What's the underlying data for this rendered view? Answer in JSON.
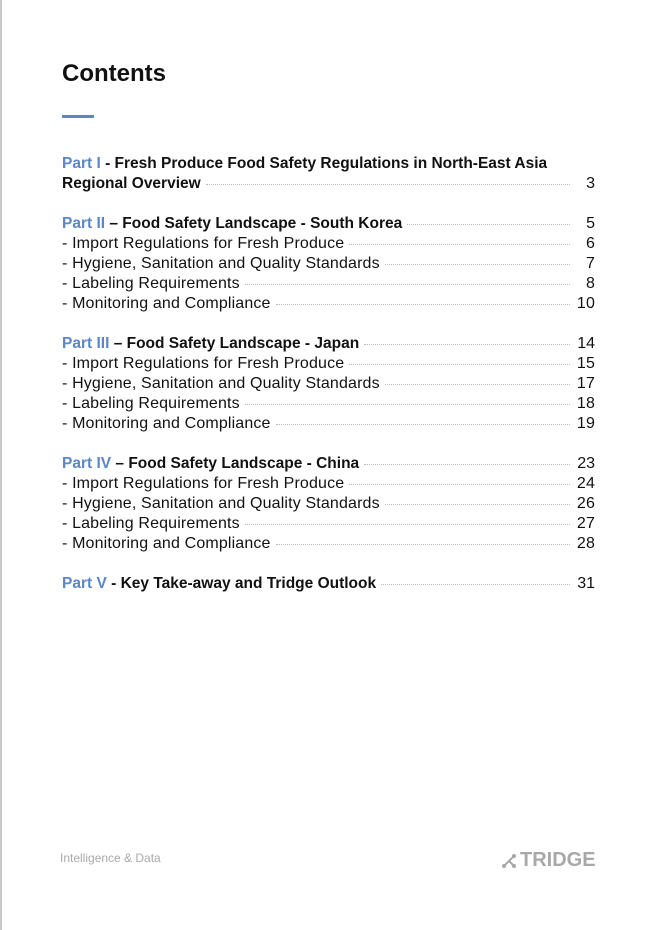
{
  "title": "Contents",
  "colors": {
    "accent": "#5b86c8",
    "text": "#111111",
    "footer": "#aaaaaa"
  },
  "toc": [
    {
      "rows": [
        {
          "part": "Part I",
          "title": " - Fresh Produce Food Safety Regulations in North-East Asia",
          "page": ""
        },
        {
          "part": "",
          "title": "Regional Overview",
          "page": "3",
          "bold": true
        }
      ]
    },
    {
      "rows": [
        {
          "part": "Part II",
          "title": " – Food Safety Landscape - South Korea",
          "page": "5"
        },
        {
          "title": "- Import Regulations for Fresh Produce",
          "page": "6"
        },
        {
          "title": "- Hygiene, Sanitation and Quality Standards",
          "page": "7"
        },
        {
          "title": "- Labeling Requirements",
          "page": "8"
        },
        {
          "title": "- Monitoring and Compliance",
          "page": "10"
        }
      ]
    },
    {
      "rows": [
        {
          "part": "Part III",
          "title": " – Food Safety Landscape - Japan",
          "page": "14"
        },
        {
          "title": "- Import Regulations for Fresh Produce",
          "page": "15"
        },
        {
          "title": "- Hygiene, Sanitation and Quality Standards",
          "page": "17"
        },
        {
          "title": "- Labeling Requirements",
          "page": "18"
        },
        {
          "title": "- Monitoring and Compliance",
          "page": "19"
        }
      ]
    },
    {
      "rows": [
        {
          "part": "Part IV",
          "title": " – Food Safety Landscape - China",
          "page": "23"
        },
        {
          "title": "- Import Regulations for Fresh Produce",
          "page": "24"
        },
        {
          "title": "- Hygiene, Sanitation and Quality Standards",
          "page": "26"
        },
        {
          "title": "- Labeling Requirements",
          "page": "27"
        },
        {
          "title": "- Monitoring and Compliance",
          "page": "28"
        }
      ]
    },
    {
      "rows": [
        {
          "part": "Part V",
          "title": " - Key Take-away and Tridge Outlook",
          "page": "31"
        }
      ]
    }
  ],
  "footer": {
    "tagline": "Intelligence & Data",
    "logo_text": "TRIDGE",
    "logo_icon": "network-node-icon"
  }
}
